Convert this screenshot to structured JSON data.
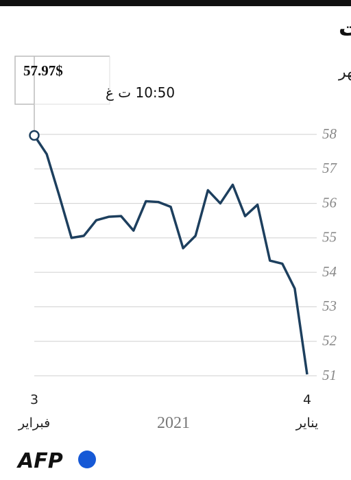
{
  "chart_data": {
    "type": "line",
    "title": "سعر برميل نفط برنت",
    "subtitle": "على مدى شهر",
    "categories": [
      "3\nفبراير",
      null,
      null,
      null,
      null,
      null,
      null,
      null,
      null,
      null,
      null,
      null,
      null,
      null,
      null,
      null,
      null,
      null,
      null,
      null,
      null,
      null,
      "4\nيناير"
    ],
    "values": [
      57.97,
      57.43,
      56.24,
      55.0,
      55.06,
      55.51,
      55.61,
      55.63,
      55.21,
      56.06,
      56.04,
      55.9,
      54.7,
      55.06,
      56.38,
      56.0,
      56.54,
      55.63,
      55.96,
      54.34,
      54.25,
      53.53,
      51.04
    ],
    "value_labels": [
      "57.97$",
      null,
      null,
      null,
      null,
      null,
      null,
      null,
      null,
      null,
      null,
      null,
      null,
      null,
      null,
      null,
      null,
      null,
      null,
      null,
      null,
      null,
      null
    ],
    "time_label": "10:50 ت غ",
    "year_label": "2021",
    "source": "AFP",
    "color": "#1d3f5e",
    "ylim": [
      51,
      58
    ],
    "yticks": [
      51,
      52,
      53,
      54,
      55,
      56,
      57,
      58
    ],
    "grid": true
  }
}
